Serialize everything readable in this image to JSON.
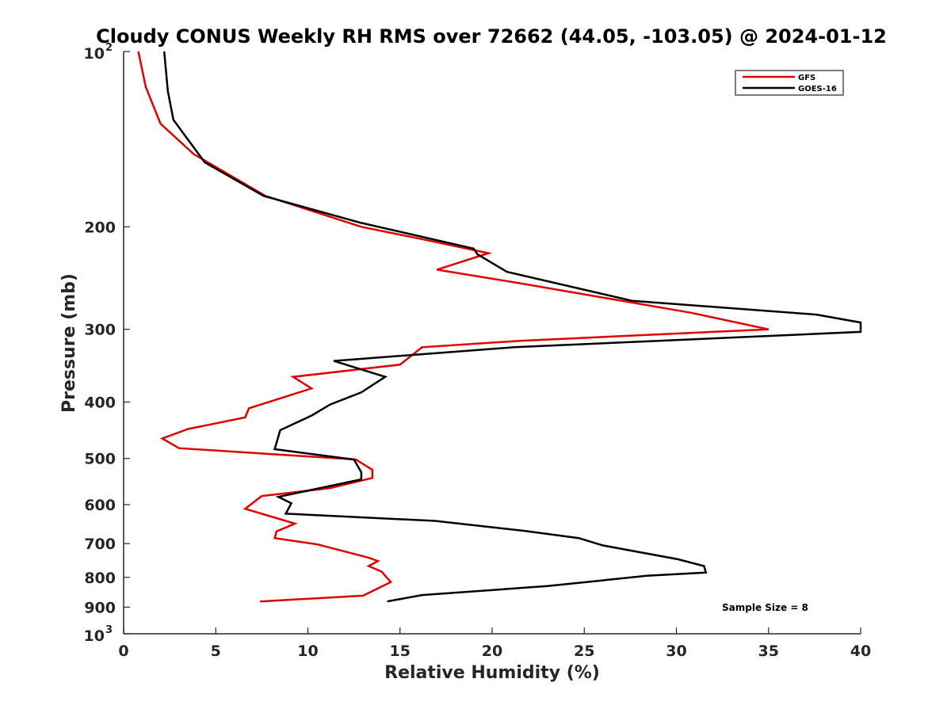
{
  "chart_data": {
    "type": "line",
    "title": "Cloudy CONUS Weekly RH RMS over 72662 (44.05, -103.05) @ 2024-01-12",
    "xlabel": "Relative Humidity (%)",
    "ylabel": "Pressure (mb)",
    "xlim": [
      0,
      40
    ],
    "ylim": [
      100,
      1000
    ],
    "y_scale": "log",
    "y_reversed": true,
    "grid": false,
    "legend_position": "top-right",
    "x_ticks": [
      "0",
      "5",
      "10",
      "15",
      "20",
      "25",
      "30",
      "35",
      "40"
    ],
    "y_ticks": [
      {
        "value": 100,
        "base": "10",
        "exp": "2"
      },
      {
        "value": 200,
        "label": "200"
      },
      {
        "value": 300,
        "label": "300"
      },
      {
        "value": 400,
        "label": "400"
      },
      {
        "value": 500,
        "label": "500"
      },
      {
        "value": 600,
        "label": "600"
      },
      {
        "value": 700,
        "label": "700"
      },
      {
        "value": 800,
        "label": "800"
      },
      {
        "value": 900,
        "label": "900"
      },
      {
        "value": 1000,
        "base": "10",
        "exp": "3"
      }
    ],
    "annotation": "Sample Size = 8",
    "series": [
      {
        "name": "GFS",
        "color": "#e00000",
        "points": [
          [
            0.8,
            100
          ],
          [
            1.2,
            115
          ],
          [
            2.0,
            133
          ],
          [
            3.8,
            150
          ],
          [
            7.7,
            177
          ],
          [
            12.9,
            200
          ],
          [
            16.5,
            211
          ],
          [
            19.8,
            222
          ],
          [
            17.0,
            237
          ],
          [
            21.5,
            250
          ],
          [
            30.8,
            281
          ],
          [
            35.0,
            300
          ],
          [
            21.5,
            314
          ],
          [
            16.2,
            322
          ],
          [
            15.0,
            345
          ],
          [
            9.2,
            362
          ],
          [
            10.2,
            379
          ],
          [
            6.8,
            410
          ],
          [
            6.6,
            425
          ],
          [
            3.5,
            445
          ],
          [
            2.1,
            462
          ],
          [
            3.0,
            480
          ],
          [
            12.6,
            502
          ],
          [
            13.5,
            523
          ],
          [
            13.5,
            540
          ],
          [
            11.2,
            562
          ],
          [
            7.5,
            580
          ],
          [
            6.6,
            610
          ],
          [
            9.3,
            647
          ],
          [
            8.3,
            667
          ],
          [
            8.2,
            685
          ],
          [
            10.5,
            702
          ],
          [
            13.3,
            740
          ],
          [
            13.8,
            750
          ],
          [
            13.3,
            765
          ],
          [
            14.0,
            782
          ],
          [
            14.5,
            815
          ],
          [
            13.0,
            860
          ],
          [
            7.4,
            880
          ]
        ]
      },
      {
        "name": "GOES-16",
        "color": "#000000",
        "points": [
          [
            2.2,
            100
          ],
          [
            2.4,
            117
          ],
          [
            2.7,
            131
          ],
          [
            4.4,
            155
          ],
          [
            7.6,
            177
          ],
          [
            12.9,
            197
          ],
          [
            19.0,
            218
          ],
          [
            19.2,
            223
          ],
          [
            20.8,
            239
          ],
          [
            27.6,
            268
          ],
          [
            37.6,
            283
          ],
          [
            40.0,
            292
          ],
          [
            40.0,
            303
          ],
          [
            21.2,
            322
          ],
          [
            11.4,
            340
          ],
          [
            14.2,
            362
          ],
          [
            12.9,
            385
          ],
          [
            11.2,
            404
          ],
          [
            10.2,
            422
          ],
          [
            8.5,
            447
          ],
          [
            8.2,
            482
          ],
          [
            12.5,
            502
          ],
          [
            12.9,
            528
          ],
          [
            12.9,
            543
          ],
          [
            8.4,
            582
          ],
          [
            9.1,
            597
          ],
          [
            8.8,
            622
          ],
          [
            16.9,
            640
          ],
          [
            21.8,
            666
          ],
          [
            24.7,
            685
          ],
          [
            26.0,
            705
          ],
          [
            30.1,
            745
          ],
          [
            31.5,
            765
          ],
          [
            31.6,
            785
          ],
          [
            28.4,
            795
          ],
          [
            23.0,
            828
          ],
          [
            16.2,
            858
          ],
          [
            14.3,
            880
          ]
        ]
      }
    ]
  }
}
